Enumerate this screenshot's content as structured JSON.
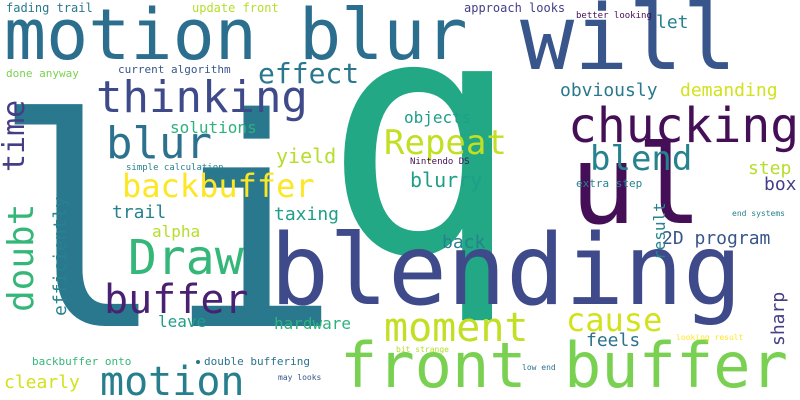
{
  "words": {
    "big_q": "q",
    "li": "li",
    "blending": "blending",
    "ul": "ul",
    "front_buffer": "front buffer",
    "motion_blur": "motion blur",
    "will": "will",
    "chucking": "chucking",
    "thinking": "thinking",
    "draw": "Draw",
    "buffer": "buffer",
    "motion": "motion",
    "blur": "blur",
    "backbuffer": "backbuffer",
    "repeat": "Repeat",
    "moment": "moment",
    "blend": "blend",
    "cause": "cause",
    "time": "time",
    "doubt": "doubt",
    "effect": "effect",
    "obviously": "obviously",
    "demanding": "demanding",
    "let": "let",
    "solutions": "solutions",
    "yield": "yield",
    "objects": "objects",
    "blurry": "blurry",
    "trail": "trail",
    "taxing": "taxing",
    "alpha": "alpha",
    "back": "back",
    "twod_program": "2D program",
    "box": "box",
    "step": "step",
    "result": "result",
    "hardware": "hardware",
    "leave": "leave",
    "feels": "feels",
    "sharp": "sharp",
    "clearly": "clearly",
    "efficiently": "efficiently",
    "fading_trail": "fading trail",
    "update_front": "update front",
    "approach_looks": "approach looks",
    "better_looking": "better looking",
    "done_anyway": "done anyway",
    "current_algorithm": "current algorithm",
    "simple_calculation": "simple calculation",
    "nintendo_ds": "Nintendo DS",
    "extra_step": "extra step",
    "end_systems": "end systems",
    "backbuffer_onto": "backbuffer onto",
    "double_buffering": "double buffering",
    "bit_strange": "bit strange",
    "looking_result": "looking result",
    "may_looks": "may looks",
    "low_end": "low end"
  }
}
